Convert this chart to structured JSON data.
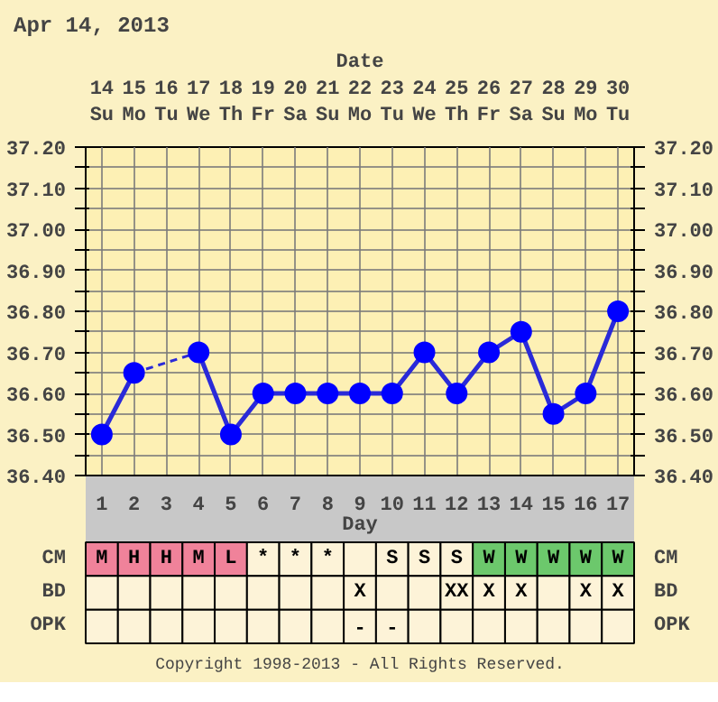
{
  "chart_data": [
    {
      "type": "line",
      "title": "Apr 14, 2013",
      "xlabel": "Day",
      "x2label": "Date",
      "x": [
        1,
        2,
        3,
        4,
        5,
        6,
        7,
        8,
        9,
        10,
        11,
        12,
        13,
        14,
        15,
        16,
        17
      ],
      "series": [
        {
          "color": "#2a2ad8",
          "values": [
            36.5,
            36.65,
            null,
            36.7,
            36.5,
            36.6,
            36.6,
            36.6,
            36.6,
            36.6,
            36.7,
            36.6,
            36.7,
            36.75,
            36.55,
            36.6,
            36.8
          ]
        }
      ],
      "marker": "circle",
      "line_style": "solid",
      "grid": true,
      "xlim": [
        0.5,
        17.5
      ],
      "xticks": [
        1,
        2,
        3,
        4,
        5,
        6,
        7,
        8,
        9,
        10,
        11,
        12,
        13,
        14,
        15,
        16,
        17
      ],
      "x2lim": [
        13.5,
        30.5
      ],
      "x2ticks": [
        {
          "value": 14,
          "label": "14\nSu"
        },
        {
          "value": 15,
          "label": "15\nMo"
        },
        {
          "value": 16,
          "label": "16\nTu"
        },
        {
          "value": 17,
          "label": "17\nWe"
        },
        {
          "value": 18,
          "label": "18\nTh"
        },
        {
          "value": 19,
          "label": "19\nFr"
        },
        {
          "value": 20,
          "label": "20\nSa"
        },
        {
          "value": 21,
          "label": "21\nSu"
        },
        {
          "value": 22,
          "label": "22\nMo"
        },
        {
          "value": 23,
          "label": "23\nTu"
        },
        {
          "value": 24,
          "label": "24\nWe"
        },
        {
          "value": 25,
          "label": "25\nTh"
        },
        {
          "value": 26,
          "label": "26\nFr"
        },
        {
          "value": 27,
          "label": "27\nSa"
        },
        {
          "value": 28,
          "label": "28\nSu"
        },
        {
          "value": 29,
          "label": "29\nMo"
        },
        {
          "value": 30,
          "label": "30\nTu"
        }
      ],
      "ylim": [
        36.4,
        37.2
      ],
      "yticks": [
        {
          "value": 36.4,
          "label": "36.40"
        },
        {
          "value": 36.45,
          "label": null
        },
        {
          "value": 36.5,
          "label": "36.50"
        },
        {
          "value": 36.55,
          "label": null
        },
        {
          "value": 36.6,
          "label": "36.60"
        },
        {
          "value": 36.65,
          "label": null
        },
        {
          "value": 36.7,
          "label": "36.70"
        },
        {
          "value": 36.75,
          "label": null
        },
        {
          "value": 36.8,
          "label": "36.80"
        },
        {
          "value": 36.85,
          "label": null
        },
        {
          "value": 36.9,
          "label": "36.90"
        },
        {
          "value": 36.95,
          "label": null
        },
        {
          "value": 37.0,
          "label": "37.00"
        },
        {
          "value": 37.05,
          "label": null
        },
        {
          "value": 37.1,
          "label": "37.10"
        },
        {
          "value": 37.15,
          "label": null
        },
        {
          "value": 37.2,
          "label": "37.20"
        }
      ],
      "y2lim": [
        36.4,
        37.2
      ],
      "y2ticks": [
        {
          "value": 36.4,
          "label": "36.40"
        },
        {
          "value": 36.45,
          "label": null
        },
        {
          "value": 36.5,
          "label": "36.50"
        },
        {
          "value": 36.55,
          "label": null
        },
        {
          "value": 36.6,
          "label": "36.60"
        },
        {
          "value": 36.65,
          "label": null
        },
        {
          "value": 36.7,
          "label": "36.70"
        },
        {
          "value": 36.75,
          "label": null
        },
        {
          "value": 36.8,
          "label": "36.80"
        },
        {
          "value": 36.85,
          "label": null
        },
        {
          "value": 36.9,
          "label": "36.90"
        },
        {
          "value": 36.95,
          "label": null
        },
        {
          "value": 37.0,
          "label": "37.00"
        },
        {
          "value": 37.05,
          "label": null
        },
        {
          "value": 37.1,
          "label": "37.10"
        },
        {
          "value": 37.15,
          "label": null
        },
        {
          "value": 37.2,
          "label": "37.20"
        }
      ]
    },
    {
      "type": "heatmap",
      "tick_labels": "y",
      "categories": [
        null,
        null,
        null,
        null,
        null,
        null,
        null,
        null,
        null,
        null,
        null,
        null,
        null,
        null,
        null,
        null,
        null
      ],
      "y_categories": [
        "CM",
        "BD",
        "OPK"
      ],
      "y2_categories": [
        "CM",
        "BD",
        "OPK"
      ],
      "cells": [
        [
          null,
          null,
          null,
          null,
          null,
          null,
          null,
          null,
          null,
          null,
          null,
          null,
          null,
          null,
          null,
          null,
          null
        ],
        [
          null,
          null,
          null,
          null,
          null,
          null,
          null,
          null,
          null,
          null,
          null,
          null,
          null,
          null,
          null,
          null,
          null
        ],
        [
          null,
          null,
          null,
          null,
          null,
          null,
          null,
          null,
          null,
          null,
          null,
          null,
          null,
          null,
          null,
          null,
          null
        ]
      ],
      "cell_labels": [
        [
          "M",
          "H",
          "H",
          "M",
          "L",
          "*",
          "*",
          "*",
          null,
          "S",
          "S",
          "S",
          "W",
          "W",
          "W",
          "W",
          "W"
        ],
        [
          null,
          null,
          null,
          null,
          null,
          null,
          null,
          null,
          "X",
          null,
          null,
          "XX",
          "X",
          "X",
          null,
          "X",
          "X"
        ],
        [
          null,
          null,
          null,
          null,
          null,
          null,
          null,
          null,
          "-",
          "-",
          null,
          null,
          null,
          null,
          null,
          null,
          null
        ]
      ],
      "colors": [
        [
          "#f0829a",
          "#f0829a",
          "#f0829a",
          "#f0829a",
          "#f0829a",
          "#fdf3d8",
          "#fdf3d8",
          "#fdf3d8",
          "#fdf3d8",
          "#fdf3d8",
          "#fdf3d8",
          "#fdf3d8",
          "#6cc86c",
          "#6cc86c",
          "#6cc86c",
          "#6cc86c",
          "#6cc86c"
        ],
        [
          "#fdf3d8",
          "#fdf3d8",
          "#fdf3d8",
          "#fdf3d8",
          "#fdf3d8",
          "#fdf3d8",
          "#fdf3d8",
          "#fdf3d8",
          "#fdf3d8",
          "#fdf3d8",
          "#fdf3d8",
          "#fdf3d8",
          "#fdf3d8",
          "#fdf3d8",
          "#fdf3d8",
          "#fdf3d8",
          "#fdf3d8"
        ],
        [
          "#fdf3d8",
          "#fdf3d8",
          "#fdf3d8",
          "#fdf3d8",
          "#fdf3d8",
          "#fdf3d8",
          "#fdf3d8",
          "#fdf3d8",
          "#fdf3d8",
          "#fdf3d8",
          "#fdf3d8",
          "#fdf3d8",
          "#fdf3d8",
          "#fdf3d8",
          "#fdf3d8",
          "#fdf3d8",
          "#fdf3d8"
        ]
      ],
      "annotations": [
        "Copyright 1998-2013 - All Rights Reserved."
      ]
    }
  ]
}
